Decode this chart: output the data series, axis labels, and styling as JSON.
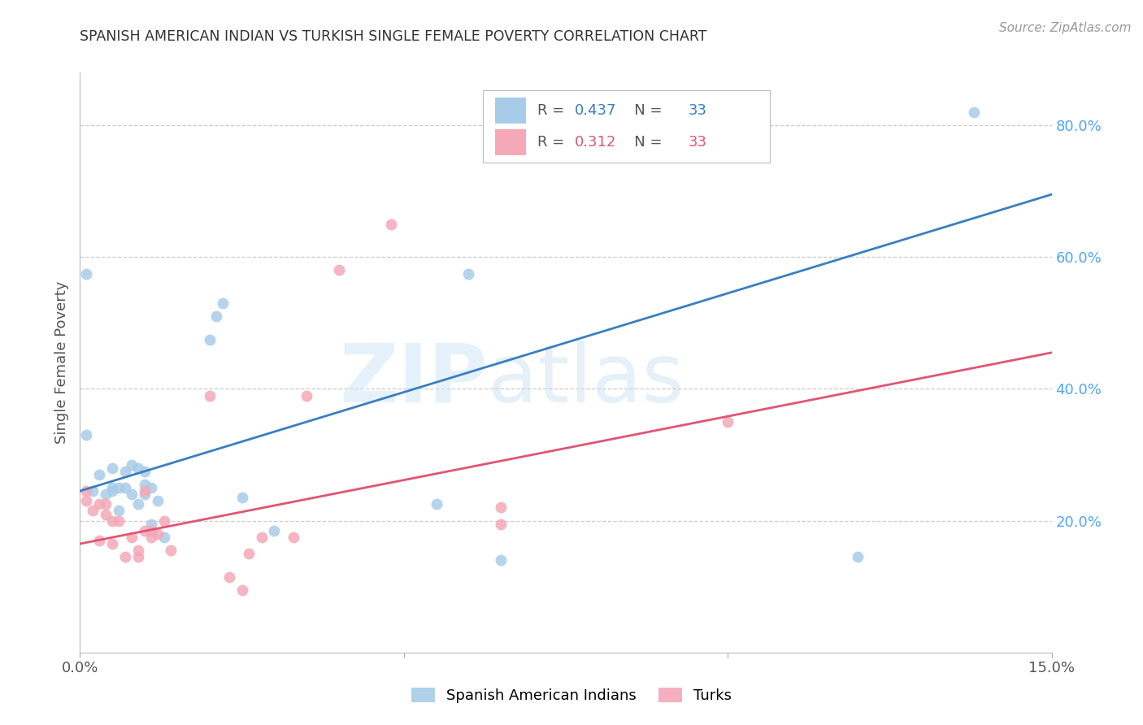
{
  "title": "SPANISH AMERICAN INDIAN VS TURKISH SINGLE FEMALE POVERTY CORRELATION CHART",
  "source": "Source: ZipAtlas.com",
  "ylabel": "Single Female Poverty",
  "xlim": [
    0.0,
    0.15
  ],
  "ylim": [
    0.0,
    0.88
  ],
  "xtick_vals": [
    0.0,
    0.05,
    0.1,
    0.15
  ],
  "xtick_labels": [
    "0.0%",
    "",
    "",
    "15.0%"
  ],
  "ytick_vals_right": [
    0.2,
    0.4,
    0.6,
    0.8
  ],
  "ytick_labels_right": [
    "20.0%",
    "40.0%",
    "60.0%",
    "80.0%"
  ],
  "blue_R": "0.437",
  "blue_N": "33",
  "pink_R": "0.312",
  "pink_N": "33",
  "blue_color": "#a8cce8",
  "pink_color": "#f4a8b8",
  "blue_line_color": "#3a7fc1",
  "pink_line_color": "#e05575",
  "right_axis_color": "#4da6ff",
  "rn_color": "#333333",
  "watermark_zip": "ZIP",
  "watermark_atlas": "atlas",
  "blue_scatter_x": [
    0.001,
    0.001,
    0.002,
    0.003,
    0.004,
    0.005,
    0.005,
    0.005,
    0.006,
    0.006,
    0.007,
    0.007,
    0.008,
    0.008,
    0.009,
    0.009,
    0.01,
    0.01,
    0.01,
    0.011,
    0.011,
    0.012,
    0.013,
    0.02,
    0.021,
    0.022,
    0.025,
    0.03,
    0.055,
    0.06,
    0.065,
    0.12,
    0.138
  ],
  "blue_scatter_y": [
    0.575,
    0.33,
    0.245,
    0.27,
    0.24,
    0.245,
    0.25,
    0.28,
    0.25,
    0.215,
    0.25,
    0.275,
    0.24,
    0.285,
    0.225,
    0.28,
    0.255,
    0.275,
    0.24,
    0.195,
    0.25,
    0.23,
    0.175,
    0.475,
    0.51,
    0.53,
    0.235,
    0.185,
    0.225,
    0.575,
    0.14,
    0.145,
    0.82
  ],
  "pink_scatter_x": [
    0.001,
    0.001,
    0.002,
    0.003,
    0.003,
    0.004,
    0.004,
    0.005,
    0.005,
    0.006,
    0.007,
    0.008,
    0.009,
    0.009,
    0.01,
    0.01,
    0.011,
    0.011,
    0.012,
    0.013,
    0.014,
    0.02,
    0.023,
    0.025,
    0.026,
    0.028,
    0.033,
    0.035,
    0.04,
    0.048,
    0.065,
    0.065,
    0.1
  ],
  "pink_scatter_y": [
    0.23,
    0.245,
    0.215,
    0.225,
    0.17,
    0.225,
    0.21,
    0.2,
    0.165,
    0.2,
    0.145,
    0.175,
    0.145,
    0.155,
    0.185,
    0.245,
    0.175,
    0.185,
    0.18,
    0.2,
    0.155,
    0.39,
    0.115,
    0.095,
    0.15,
    0.175,
    0.175,
    0.39,
    0.58,
    0.65,
    0.22,
    0.195,
    0.35
  ],
  "blue_line_x": [
    0.0,
    0.15
  ],
  "blue_line_y": [
    0.245,
    0.695
  ],
  "pink_line_x": [
    0.0,
    0.15
  ],
  "pink_line_y": [
    0.165,
    0.455
  ],
  "legend_label_blue": "Spanish American Indians",
  "legend_label_pink": "Turks"
}
